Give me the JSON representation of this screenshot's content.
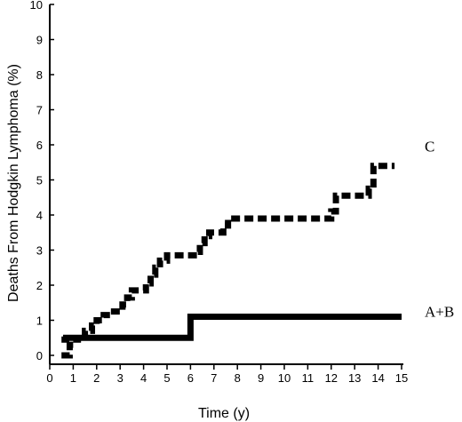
{
  "chart_data": {
    "type": "line",
    "xlabel": "Time (y)",
    "ylabel": "Deaths From Hodgkin  Lymphoma (%)",
    "xlim": [
      0,
      15
    ],
    "ylim": [
      0,
      10
    ],
    "x_ticks": [
      0,
      1,
      2,
      3,
      4,
      5,
      6,
      7,
      8,
      9,
      10,
      11,
      12,
      13,
      14,
      15
    ],
    "y_ticks": [
      0,
      1,
      2,
      3,
      4,
      5,
      6,
      7,
      8,
      9,
      10
    ],
    "grid": false,
    "legend": "none",
    "series": [
      {
        "name": "C",
        "style": "dashed",
        "color": "#000000",
        "step": true,
        "x": [
          0.5,
          0.7,
          0.85,
          1.0,
          1.2,
          1.5,
          1.8,
          2.0,
          2.3,
          2.6,
          3.1,
          3.3,
          3.5,
          4.1,
          4.3,
          4.5,
          4.7,
          5.0,
          6.3,
          6.4,
          6.6,
          6.8,
          7.4,
          7.6,
          12.0,
          12.2,
          13.6,
          13.8,
          14.7
        ],
        "y": [
          0,
          0,
          0.3,
          0.45,
          0.55,
          0.7,
          0.85,
          1.0,
          1.15,
          1.25,
          1.45,
          1.65,
          1.85,
          2.05,
          2.3,
          2.5,
          2.7,
          2.85,
          2.95,
          3.2,
          3.4,
          3.5,
          3.7,
          3.9,
          4.1,
          4.55,
          4.75,
          5.4,
          5.4
        ]
      },
      {
        "name": "A+B",
        "style": "solid",
        "color": "#000000",
        "step": true,
        "x": [
          0.5,
          0.7,
          0.9,
          1.1,
          6.0,
          15.0
        ],
        "y": [
          0.45,
          0.5,
          0.5,
          0.5,
          1.1,
          1.1
        ]
      }
    ]
  }
}
